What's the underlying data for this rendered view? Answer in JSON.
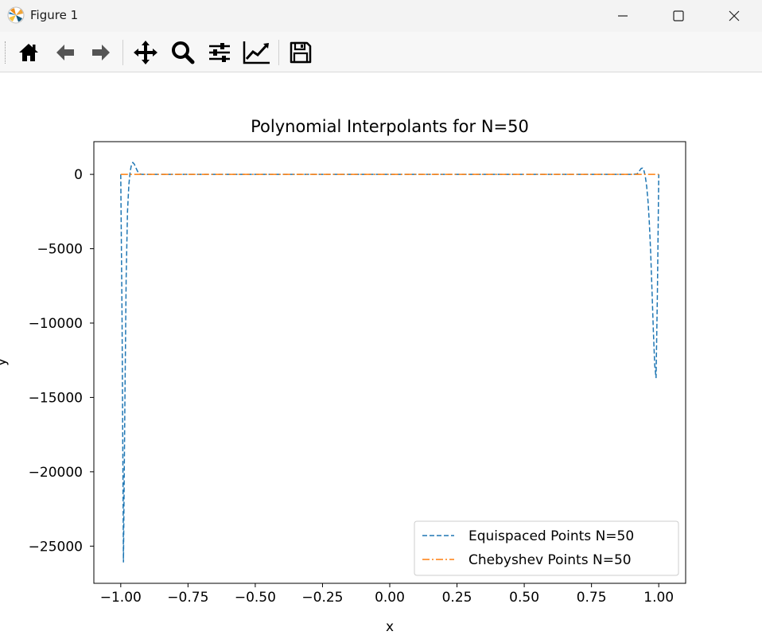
{
  "window": {
    "title": "Figure 1",
    "controls": [
      "minimize-icon",
      "maximize-icon",
      "close-icon"
    ]
  },
  "toolbar": {
    "buttons": [
      "home-icon",
      "back-icon",
      "forward-icon",
      "pan-icon",
      "zoom-icon",
      "configure-subplots-icon",
      "edit-axes-icon",
      "save-icon"
    ]
  },
  "chart_data": {
    "type": "line",
    "title": "Polynomial Interpolants for N=50",
    "xlabel": "x",
    "ylabel": "y",
    "xlim": [
      -1.1,
      1.1
    ],
    "ylim": [
      -27500,
      2200
    ],
    "x_ticks": [
      -1.0,
      -0.75,
      -0.5,
      -0.25,
      0.0,
      0.25,
      0.5,
      0.75,
      1.0
    ],
    "x_tick_labels": [
      "−1.00",
      "−0.75",
      "−0.50",
      "−0.25",
      "0.00",
      "0.25",
      "0.50",
      "0.75",
      "1.00"
    ],
    "y_ticks": [
      0,
      -5000,
      -10000,
      -15000,
      -20000,
      -25000
    ],
    "y_tick_labels": [
      "0",
      "−5000",
      "−10000",
      "−15000",
      "−20000",
      "−25000"
    ],
    "grid": false,
    "legend_position": "lower-right",
    "series": [
      {
        "name": "Equispaced Points N=50",
        "color": "#1f77b4",
        "linestyle": "dashed",
        "x": [
          -1.0,
          -0.995,
          -0.99,
          -0.985,
          -0.98,
          -0.975,
          -0.97,
          -0.965,
          -0.96,
          -0.955,
          -0.95,
          -0.945,
          -0.94,
          -0.935,
          -0.93,
          -0.925,
          -0.92,
          -0.91,
          -0.9,
          -0.88,
          -0.85,
          -0.5,
          0.0,
          0.5,
          0.85,
          0.9,
          0.91,
          0.92,
          0.925,
          0.93,
          0.935,
          0.94,
          0.945,
          0.95,
          0.955,
          0.96,
          0.965,
          0.97,
          0.975,
          0.98,
          0.985,
          0.99,
          0.995,
          1.0
        ],
        "y": [
          0,
          -10000,
          -26100,
          -16000,
          -7000,
          -2500,
          -700,
          200,
          650,
          800,
          700,
          500,
          300,
          120,
          40,
          10,
          0,
          0,
          0,
          0,
          0,
          0,
          0,
          0,
          0,
          0,
          10,
          40,
          120,
          280,
          400,
          420,
          250,
          -150,
          -800,
          -1800,
          -3200,
          -5200,
          -7800,
          -10500,
          -12800,
          -13700,
          -8000,
          0
        ]
      },
      {
        "name": "Chebyshev Points N=50",
        "color": "#ff7f0e",
        "linestyle": "dashdot",
        "x": [
          -1.0,
          -0.5,
          0.0,
          0.5,
          1.0
        ],
        "y": [
          0,
          0,
          0,
          0,
          0
        ]
      }
    ]
  }
}
